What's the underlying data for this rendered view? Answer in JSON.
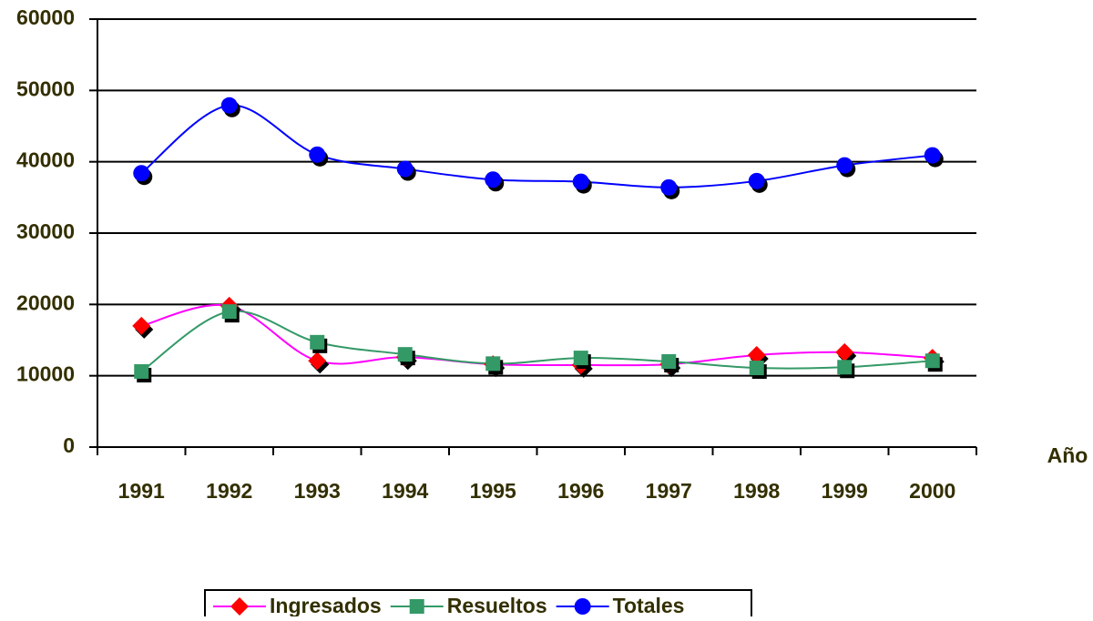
{
  "chart_data": {
    "type": "line",
    "x_label": "Año",
    "categories": [
      "1991",
      "1992",
      "1993",
      "1994",
      "1995",
      "1996",
      "1997",
      "1998",
      "1999",
      "2000"
    ],
    "series": [
      {
        "name": "Ingresados",
        "color": "#ff00ff",
        "marker_color": "#ff0000",
        "marker": "diamond",
        "values": [
          17000,
          19800,
          12100,
          12600,
          11600,
          11500,
          11600,
          12900,
          13300,
          12500
        ]
      },
      {
        "name": "Resueltos",
        "color": "#339966",
        "marker_color": "#339966",
        "marker": "square",
        "values": [
          10600,
          19000,
          14700,
          13000,
          11700,
          12500,
          12000,
          11100,
          11200,
          12100
        ]
      },
      {
        "name": "Totales",
        "color": "#0000ff",
        "marker_color": "#0000ff",
        "marker": "circle",
        "values": [
          38400,
          47900,
          41000,
          39000,
          37500,
          37200,
          36400,
          37300,
          39500,
          40900
        ]
      }
    ],
    "ylim": [
      0,
      60000
    ],
    "yticks": [
      0,
      10000,
      20000,
      30000,
      40000,
      50000,
      60000
    ],
    "grid": true,
    "legend": "bottom"
  }
}
